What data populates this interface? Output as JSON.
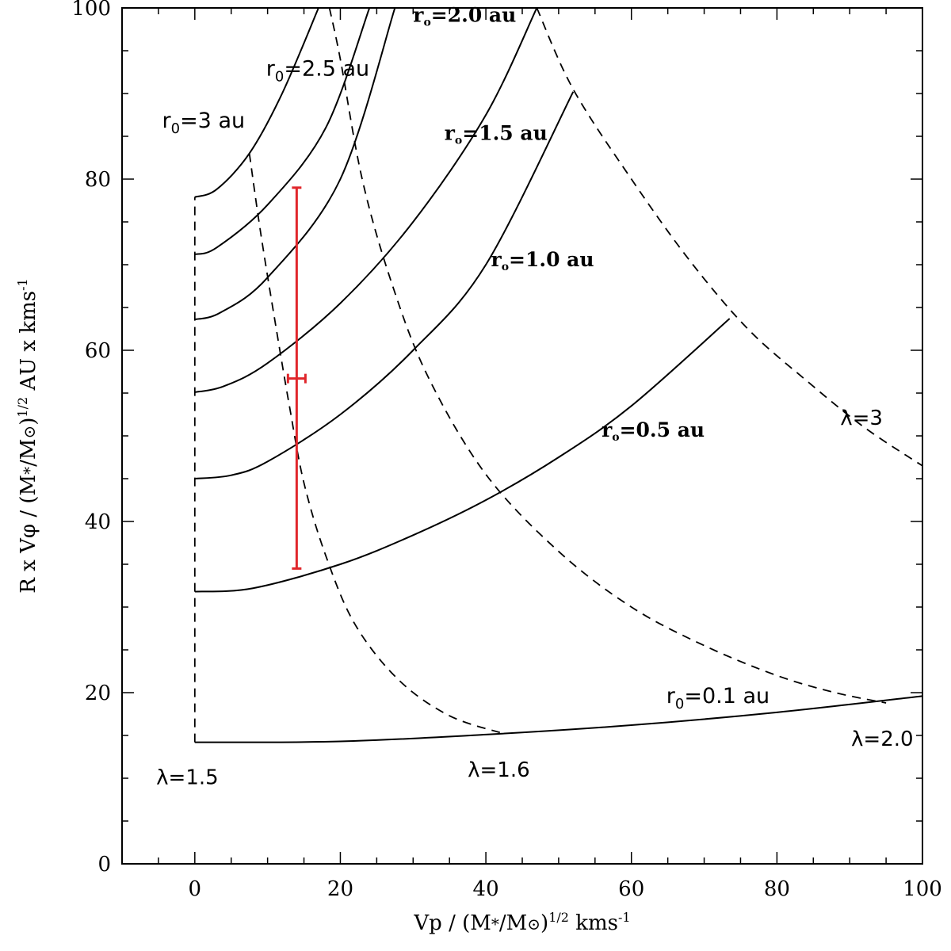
{
  "chart_data": {
    "type": "line",
    "xlabel_parts": [
      "Vp  /  (M",
      "*",
      "/M",
      "⊙",
      ")",
      "1/2",
      "  kms",
      "-1"
    ],
    "ylabel_parts": [
      "R x V",
      "φ",
      "  /  (M",
      "*",
      "/M",
      "⊙",
      ")",
      "1/2",
      "  AU x kms",
      "-1"
    ],
    "xlim": [
      -10,
      100
    ],
    "ylim": [
      0,
      100
    ],
    "x_ticks": [
      0,
      20,
      40,
      60,
      80,
      100
    ],
    "y_ticks": [
      0,
      20,
      40,
      60,
      80,
      100
    ],
    "x_minor_step": 5,
    "y_minor_step": 5,
    "series": [
      {
        "name": "r0=0.1 au",
        "style": "solid",
        "x": [
          0,
          20,
          40,
          60,
          80,
          100
        ],
        "y": [
          14.2,
          14.3,
          15.1,
          16.2,
          17.7,
          19.6
        ]
      },
      {
        "name": "r0=0.5 au",
        "style": "solid",
        "x": [
          0,
          8,
          20,
          30,
          40,
          50,
          60,
          73.5
        ],
        "y": [
          31.8,
          32.2,
          35,
          38.4,
          42.5,
          47.5,
          53.5,
          63.7
        ]
      },
      {
        "name": "r0=1.0 au",
        "style": "solid",
        "x": [
          0,
          5,
          10,
          20,
          30,
          40,
          52
        ],
        "y": [
          45,
          45.4,
          47,
          52.5,
          60,
          70,
          90.2
        ]
      },
      {
        "name": "r0=1.5 au",
        "style": "solid",
        "x": [
          0,
          4,
          10,
          20,
          30,
          40,
          47
        ],
        "y": [
          55.1,
          55.8,
          58.5,
          65.5,
          75,
          87.5,
          100
        ]
      },
      {
        "name": "r0=2.0 au",
        "style": "solid",
        "x": [
          0,
          3.5,
          10,
          20,
          27.5
        ],
        "y": [
          63.6,
          64.4,
          68.5,
          80,
          100
        ]
      },
      {
        "name": "r0=2.5 au",
        "style": "solid",
        "x": [
          0,
          3,
          10,
          18,
          24
        ],
        "y": [
          71.2,
          72,
          77,
          86,
          100
        ]
      },
      {
        "name": "r0=3 au",
        "style": "solid",
        "x": [
          0,
          3,
          7.5,
          12,
          17
        ],
        "y": [
          77.9,
          78.8,
          83,
          90,
          100
        ]
      },
      {
        "name": "lambda=1.5",
        "style": "dashed",
        "x": [
          0,
          0
        ],
        "y": [
          14.2,
          77.9
        ]
      },
      {
        "name": "lambda=1.6",
        "style": "dashed",
        "x": [
          7.5,
          9,
          11,
          13,
          15,
          18,
          22,
          28,
          35,
          42.5
        ],
        "y": [
          83,
          74,
          63.5,
          53.5,
          44.5,
          36,
          28,
          21.5,
          17.3,
          15.2
        ]
      },
      {
        "name": "lambda=2.0",
        "style": "dashed",
        "x": [
          18.5,
          20,
          23,
          27,
          32,
          40,
          50,
          60,
          70,
          80,
          88,
          95
        ],
        "y": [
          100,
          94,
          80,
          68,
          57,
          45.5,
          36.5,
          30,
          25.5,
          22,
          20,
          18.8
        ]
      },
      {
        "name": "lambda=3",
        "style": "dashed",
        "x": [
          47,
          52,
          60,
          68,
          76,
          84,
          92,
          100
        ],
        "y": [
          100,
          90.5,
          80,
          70.5,
          62.5,
          56.5,
          51,
          46.5
        ]
      }
    ],
    "error_bar": {
      "x": 14,
      "y_low": 34.5,
      "y_high": 79,
      "x_low": 12.8,
      "x_high": 15.2,
      "y_mid": 56.7,
      "color": "#e0262b"
    },
    "annotations": [
      {
        "id": "r0_3",
        "style": "sans",
        "pre": "r",
        "sub": "0",
        "post": "=3 au",
        "x": -4.5,
        "y": 86
      },
      {
        "id": "r0_25",
        "style": "sans",
        "pre": "r",
        "sub": "0",
        "post": "=2.5 au",
        "x": 9.8,
        "y": 92.1
      },
      {
        "id": "r0_20",
        "style": "serif",
        "pre": "r",
        "sub": "o",
        "post": "=2.0 au",
        "x": 30,
        "y": 98.4
      },
      {
        "id": "r0_15",
        "style": "serif",
        "pre": "r",
        "sub": "o",
        "post": "=1.5 au",
        "x": 34.3,
        "y": 84.6
      },
      {
        "id": "r0_10",
        "style": "serif",
        "pre": "r",
        "sub": "o",
        "post": "=1.0 au",
        "x": 40.7,
        "y": 69.8
      },
      {
        "id": "r0_05",
        "style": "serif",
        "pre": "r",
        "sub": "o",
        "post": "=0.5 au",
        "x": 55.9,
        "y": 49.9
      },
      {
        "id": "r0_01",
        "style": "sans",
        "pre": "r",
        "sub": "0",
        "post": "=0.1 au",
        "x": 64.8,
        "y": 18.8
      },
      {
        "id": "lam15",
        "style": "lambda",
        "text": "λ=1.5",
        "x": -5.3,
        "y": 9.3
      },
      {
        "id": "lam16",
        "style": "lambda",
        "text": "λ=1.6",
        "x": 37.5,
        "y": 10.2
      },
      {
        "id": "lam20",
        "style": "lambda",
        "text": "λ=2.0",
        "x": 90.2,
        "y": 13.8
      },
      {
        "id": "lam3",
        "style": "lambda",
        "text": "λ=3",
        "x": 88.7,
        "y": 51.3
      }
    ]
  }
}
